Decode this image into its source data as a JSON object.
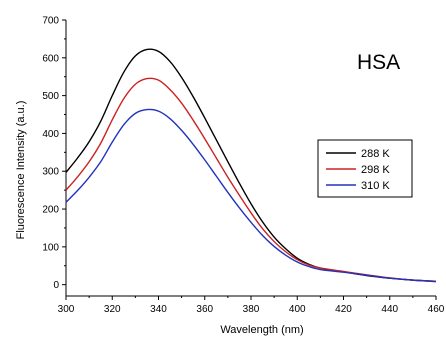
{
  "chart_data": {
    "type": "line",
    "title": "",
    "annotation": "HSA",
    "xlabel": "Wavelength (nm)",
    "ylabel": "Fluorescence Intensity (a.u.)",
    "xlim": [
      300,
      460
    ],
    "ylim": [
      -30,
      700
    ],
    "xticks": [
      300,
      320,
      340,
      360,
      380,
      400,
      420,
      440,
      460
    ],
    "yticks": [
      0,
      100,
      200,
      300,
      400,
      500,
      600,
      700
    ],
    "legend_position": "right",
    "grid": false,
    "x": [
      300,
      305,
      310,
      315,
      320,
      325,
      330,
      335,
      340,
      345,
      350,
      355,
      360,
      365,
      370,
      375,
      380,
      385,
      390,
      395,
      400,
      405,
      410,
      420,
      430,
      440,
      450,
      460
    ],
    "series": [
      {
        "name": "288 K",
        "color": "#000000",
        "values": [
          297,
          335,
          378,
          432,
          500,
          562,
          605,
          622,
          617,
          590,
          548,
          497,
          441,
          383,
          325,
          268,
          214,
          166,
          126,
          95,
          70,
          54,
          44,
          34,
          24,
          17,
          12,
          9
        ]
      },
      {
        "name": "298 K",
        "color": "#cc2222",
        "values": [
          250,
          285,
          325,
          374,
          436,
          492,
          530,
          545,
          541,
          516,
          480,
          435,
          386,
          335,
          284,
          236,
          190,
          148,
          114,
          87,
          66,
          52,
          44,
          35,
          26,
          18,
          12,
          9
        ]
      },
      {
        "name": "310 K",
        "color": "#2233bb",
        "values": [
          218,
          249,
          284,
          325,
          377,
          423,
          453,
          463,
          459,
          439,
          408,
          371,
          330,
          287,
          244,
          203,
          165,
          130,
          101,
          78,
          60,
          48,
          40,
          33,
          25,
          17,
          12,
          8
        ]
      }
    ]
  }
}
